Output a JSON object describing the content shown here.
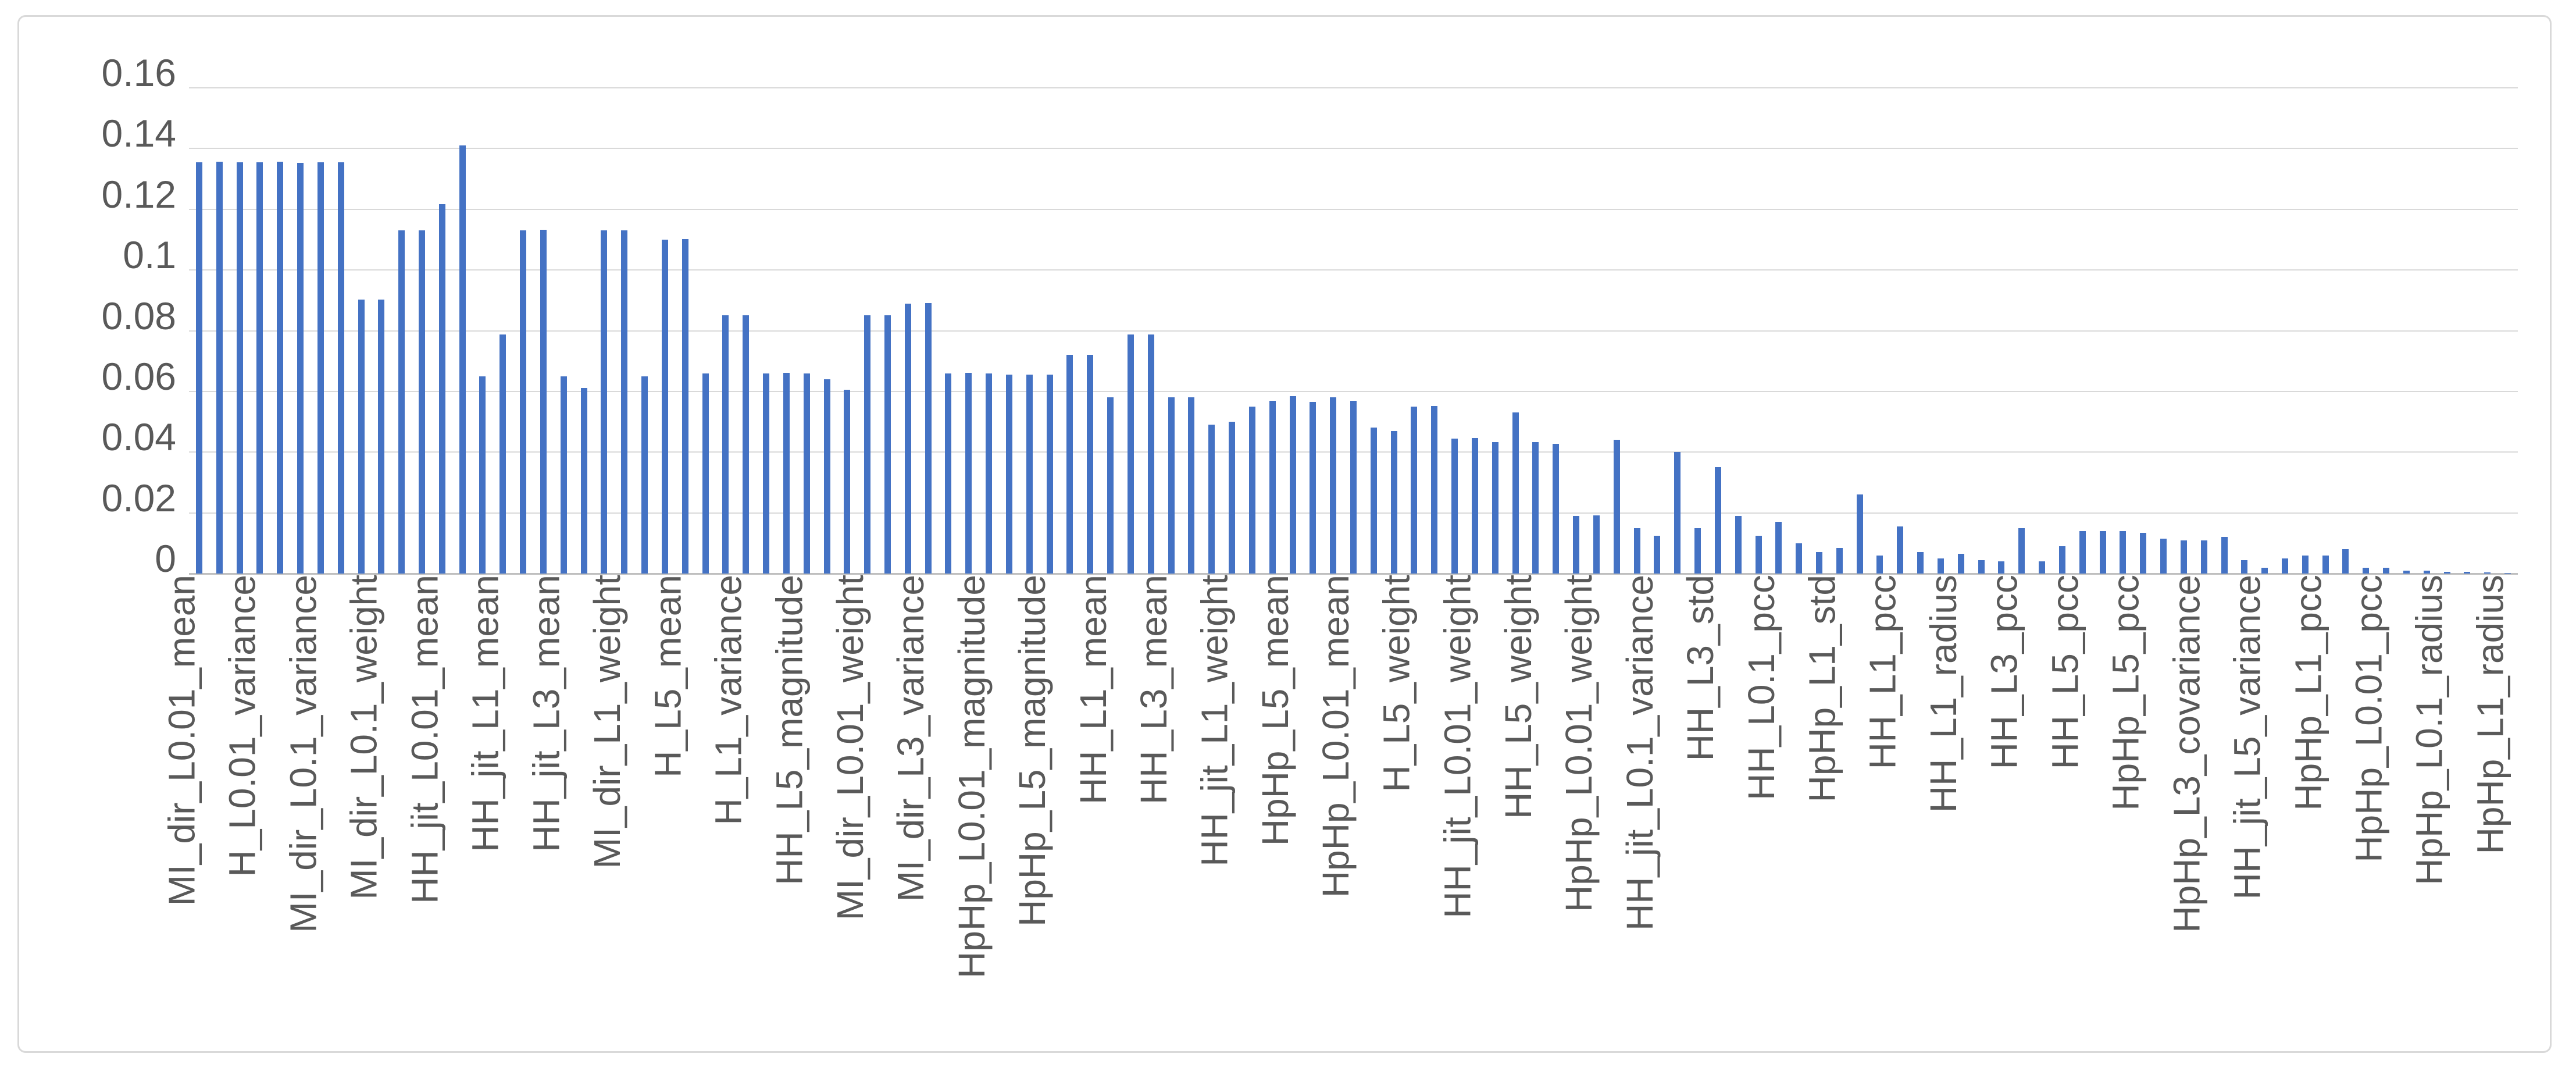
{
  "chart_data": {
    "type": "bar",
    "title": "",
    "xlabel": "",
    "ylabel": "",
    "ylim": [
      0,
      0.16
    ],
    "grid": true,
    "legend": "none",
    "bar_color": "#4472C4",
    "gridline_color": "#D9D9D9",
    "axis_line_color": "#BFBFBF",
    "tick_text_color": "#595959",
    "y_ticks": [
      "0",
      "0.02",
      "0.04",
      "0.06",
      "0.08",
      "0.1",
      "0.12",
      "0.14",
      "0.16"
    ],
    "n_bars": 115,
    "label_every_n": 3,
    "visible_labels": [
      "MI_dir_L0.01_mean",
      "H_L0.01_variance",
      "MI_dir_L0.1_variance",
      "MI_dir_L0.1_weight",
      "HH_jit_L0.01_mean",
      "HH_jit_L1_mean",
      "HH_jit_L3_mean",
      "MI_dir_L1_weight",
      "H_L5_mean",
      "H_L1_variance",
      "HH_L5_magnitude",
      "MI_dir_L0.01_weight",
      "MI_dir_L3_variance",
      "HpHp_L0.01_magnitude",
      "HpHp_L5_magnitude",
      "HH_L1_mean",
      "HH_L3_mean",
      "HH_jit_L1_weight",
      "HpHp_L5_mean",
      "HpHp_L0.01_mean",
      "H_L5_weight",
      "HH_jit_L0.01_weight",
      "HH_L5_weight",
      "HpHp_L0.01_weight",
      "HH_jit_L0.1_variance",
      "HH_L3_std",
      "HH_L0.1_pcc",
      "HpHp_L1_std",
      "HH_L1_pcc",
      "HH_L1_radius",
      "HH_L3_pcc",
      "HH_L5_pcc",
      "HpHp_L5_pcc",
      "HpHp_L3_covariance",
      "HH_jit_L5_variance",
      "HpHp_L1_pcc",
      "HpHp_L0.01_pcc",
      "HpHp_L0.1_radius",
      "HpHp_L1_radius"
    ],
    "values": [
      0.1355,
      0.1356,
      0.1354,
      0.1355,
      0.1356,
      0.1353,
      0.1355,
      0.1354,
      0.0902,
      0.0903,
      0.113,
      0.1131,
      0.1216,
      0.141,
      0.065,
      0.0787,
      0.113,
      0.1132,
      0.065,
      0.0612,
      0.113,
      0.1131,
      0.065,
      0.11,
      0.1101,
      0.066,
      0.085,
      0.0851,
      0.066,
      0.0661,
      0.066,
      0.064,
      0.0605,
      0.085,
      0.0851,
      0.089,
      0.0891,
      0.066,
      0.0661,
      0.066,
      0.0655,
      0.0656,
      0.0655,
      0.072,
      0.0721,
      0.058,
      0.0787,
      0.0788,
      0.058,
      0.0581,
      0.049,
      0.05,
      0.055,
      0.057,
      0.0585,
      0.0565,
      0.058,
      0.057,
      0.048,
      0.047,
      0.055,
      0.0551,
      0.0445,
      0.0446,
      0.0433,
      0.053,
      0.0433,
      0.0427,
      0.019,
      0.0191,
      0.044,
      0.015,
      0.0125,
      0.04,
      0.015,
      0.035,
      0.019,
      0.0125,
      0.017,
      0.01,
      0.007,
      0.0085,
      0.026,
      0.006,
      0.0155,
      0.007,
      0.005,
      0.0065,
      0.0045,
      0.004,
      0.015,
      0.004,
      0.009,
      0.014,
      0.014,
      0.014,
      0.0135,
      0.0115,
      0.011,
      0.011,
      0.012,
      0.0045,
      0.002,
      0.005,
      0.006,
      0.006,
      0.008,
      0.002,
      0.002,
      0.001,
      0.001,
      0.0005,
      0.0005,
      0.0003,
      0.0002
    ]
  }
}
